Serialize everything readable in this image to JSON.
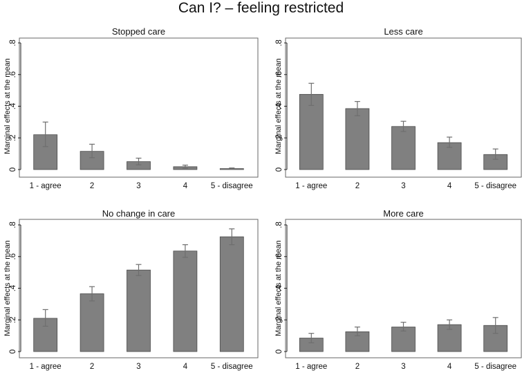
{
  "title": "Can I? – feeling restricted",
  "chart_data": [
    {
      "type": "bar",
      "title": "Stopped care",
      "ylabel": "Marginal effects at the mean",
      "ylim": [
        0,
        0.8
      ],
      "yticks": [
        0,
        0.2,
        0.4,
        0.6,
        0.8
      ],
      "ytick_labels": [
        "0",
        ".2",
        ".4",
        ".6",
        ".8"
      ],
      "categories": [
        "1 - agree",
        "2",
        "3",
        "4",
        "5 - disagree"
      ],
      "values": [
        0.22,
        0.115,
        0.05,
        0.018,
        0.006
      ],
      "ci_low": [
        0.145,
        0.075,
        0.03,
        0.008,
        0.002
      ],
      "ci_high": [
        0.3,
        0.16,
        0.072,
        0.028,
        0.01
      ]
    },
    {
      "type": "bar",
      "title": "Less care",
      "ylabel": "Marginal effects at the mean",
      "ylim": [
        0,
        0.8
      ],
      "yticks": [
        0,
        0.2,
        0.4,
        0.6,
        0.8
      ],
      "ytick_labels": [
        "0",
        ".2",
        ".4",
        ".6",
        ".8"
      ],
      "categories": [
        "1 - agree",
        "2",
        "3",
        "4",
        "5 - disagree"
      ],
      "values": [
        0.475,
        0.385,
        0.272,
        0.17,
        0.095
      ],
      "ci_low": [
        0.405,
        0.34,
        0.24,
        0.14,
        0.065
      ],
      "ci_high": [
        0.545,
        0.43,
        0.305,
        0.205,
        0.13
      ]
    },
    {
      "type": "bar",
      "title": "No change in care",
      "ylabel": "Marginal effects at the mean",
      "ylim": [
        0,
        0.8
      ],
      "yticks": [
        0,
        0.2,
        0.4,
        0.6,
        0.8
      ],
      "ytick_labels": [
        "0",
        ".2",
        ".4",
        ".6",
        ".8"
      ],
      "categories": [
        "1 - agree",
        "2",
        "3",
        "4",
        "5 - disagree"
      ],
      "values": [
        0.21,
        0.365,
        0.515,
        0.635,
        0.725
      ],
      "ci_low": [
        0.16,
        0.32,
        0.48,
        0.595,
        0.675
      ],
      "ci_high": [
        0.265,
        0.41,
        0.55,
        0.675,
        0.775
      ]
    },
    {
      "type": "bar",
      "title": "More care",
      "ylabel": "Marginal effects at the mean",
      "ylim": [
        0,
        0.8
      ],
      "yticks": [
        0,
        0.2,
        0.4,
        0.6,
        0.8
      ],
      "ytick_labels": [
        "0",
        ".2",
        ".4",
        ".6",
        ".8"
      ],
      "categories": [
        "1 - agree",
        "2",
        "3",
        "4",
        "5 - disagree"
      ],
      "values": [
        0.085,
        0.125,
        0.155,
        0.17,
        0.165
      ],
      "ci_low": [
        0.055,
        0.1,
        0.13,
        0.14,
        0.115
      ],
      "ci_high": [
        0.115,
        0.155,
        0.185,
        0.2,
        0.215
      ]
    }
  ],
  "colors": {
    "bar_fill": "#808080",
    "bar_stroke": "#4a4a4a",
    "error_bar": "#6e6e6e",
    "axis": "#222222",
    "frame": "#666666"
  }
}
